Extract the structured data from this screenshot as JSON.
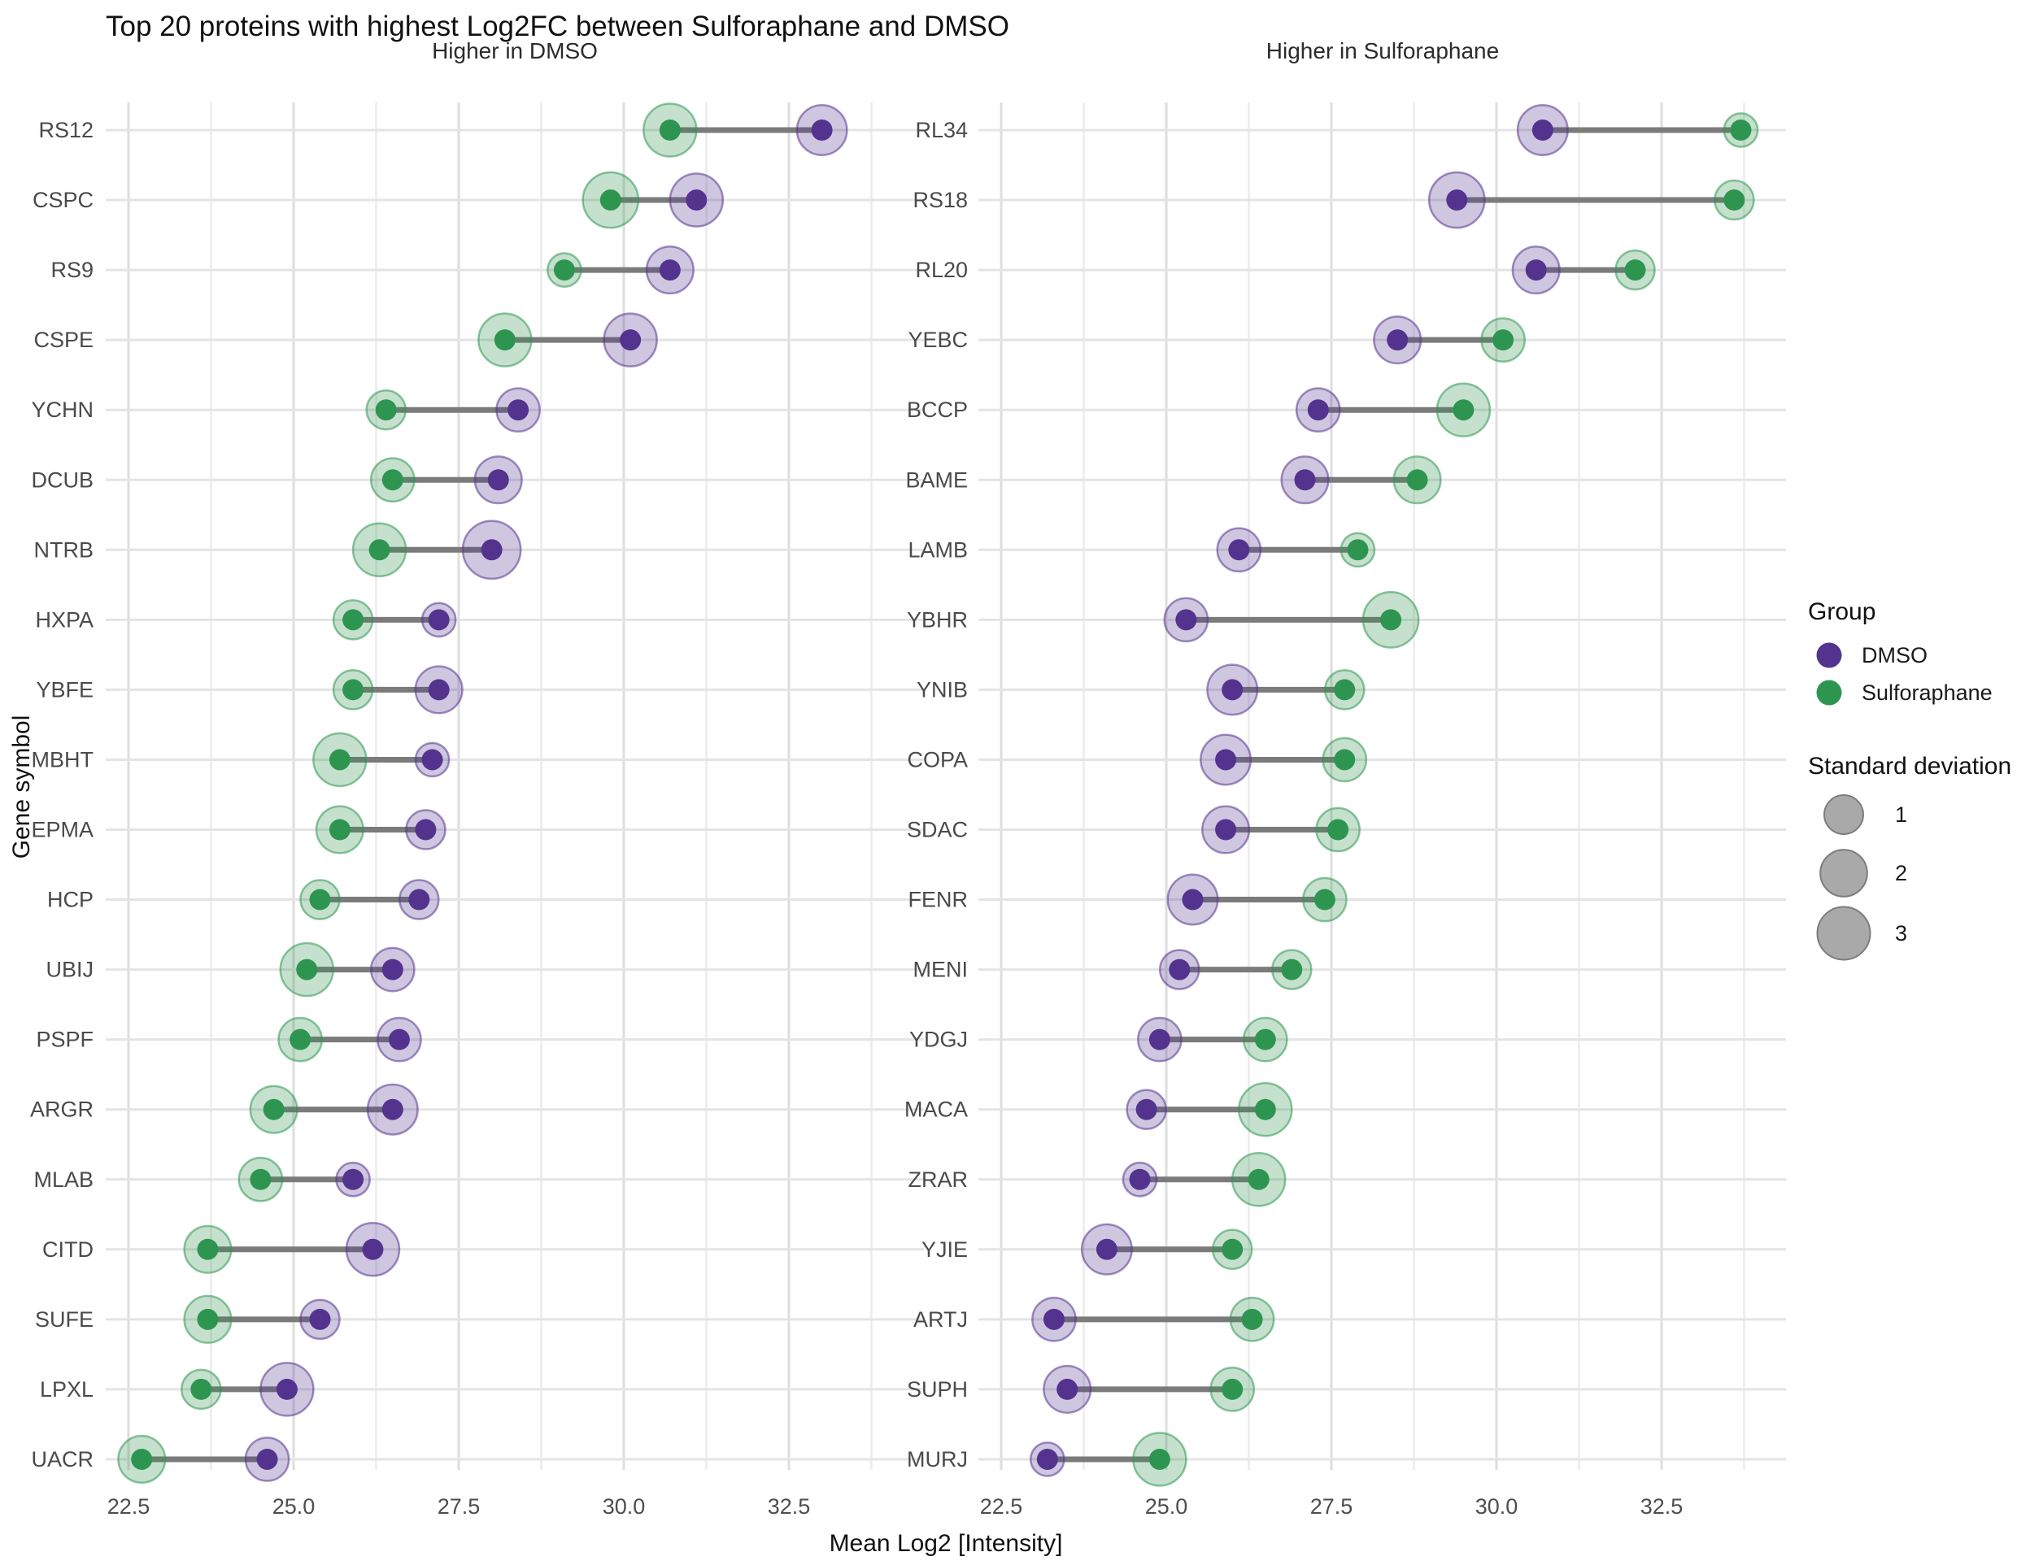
{
  "title": "Top 20 proteins with highest Log2FC between Sulforaphane and DMSO",
  "axes": {
    "x_label": "Mean Log2 [Intensity]",
    "y_label": "Gene symbol",
    "x_tick_labels": [
      "22.5",
      "25.0",
      "27.5",
      "30.0",
      "32.5"
    ],
    "x_tick_values": [
      22.5,
      25.0,
      27.5,
      30.0,
      32.5
    ],
    "x_minor_values": [
      23.75,
      26.25,
      28.75,
      31.25,
      33.75
    ],
    "x_range": [
      22.2,
      34.4
    ]
  },
  "legend": {
    "group_title": "Group",
    "groups": [
      {
        "label": "DMSO",
        "color": "#53338E"
      },
      {
        "label": "Sulforaphane",
        "color": "#2E9550"
      }
    ],
    "sd_title": "Standard deviation",
    "sd_items": [
      {
        "label": "1",
        "sd": 1
      },
      {
        "label": "2",
        "sd": 2
      },
      {
        "label": "3",
        "sd": 3
      }
    ]
  },
  "colors": {
    "dmso": "#53338E",
    "sulforaphane": "#2E9550",
    "connector": "#7b7b7b",
    "row_line": "#e4e4e4",
    "grid_major": "#dedede",
    "grid_minor": "#ececec",
    "sd_swatch_fill": "#a9a9a9",
    "sd_swatch_stroke": "#7d7d7d",
    "background": "#ffffff"
  },
  "chart_data": {
    "type": "dumbbell",
    "xlabel": "Mean Log2 [Intensity]",
    "ylabel": "Gene symbol",
    "xlim": [
      22.2,
      34.4
    ],
    "x_ticks": [
      22.5,
      25.0,
      27.5,
      30.0,
      32.5
    ],
    "grid": "on",
    "legend_position": "right",
    "series_colors": {
      "DMSO": "#53338E",
      "Sulforaphane": "#2E9550"
    },
    "size_encoding": "standard deviation (1-3)",
    "panels": [
      {
        "label": "Higher in DMSO",
        "rows": [
          {
            "gene": "RS12",
            "dmso": 33.0,
            "dmso_sd": 2.5,
            "sulforaphane": 30.7,
            "sulforaphane_sd": 3
          },
          {
            "gene": "CSPC",
            "dmso": 31.1,
            "dmso_sd": 3,
            "sulforaphane": 29.8,
            "sulforaphane_sd": 3.5
          },
          {
            "gene": "RS9",
            "dmso": 30.7,
            "dmso_sd": 2,
            "sulforaphane": 29.1,
            "sulforaphane_sd": 0.5
          },
          {
            "gene": "CSPE",
            "dmso": 30.1,
            "dmso_sd": 3,
            "sulforaphane": 28.2,
            "sulforaphane_sd": 3
          },
          {
            "gene": "YCHN",
            "dmso": 28.4,
            "dmso_sd": 1.5,
            "sulforaphane": 26.4,
            "sulforaphane_sd": 1
          },
          {
            "gene": "DCUB",
            "dmso": 28.1,
            "dmso_sd": 2,
            "sulforaphane": 26.5,
            "sulforaphane_sd": 1.5
          },
          {
            "gene": "NTRB",
            "dmso": 28.0,
            "dmso_sd": 4,
            "sulforaphane": 26.3,
            "sulforaphane_sd": 3
          },
          {
            "gene": "HXPA",
            "dmso": 27.2,
            "dmso_sd": 0.5,
            "sulforaphane": 25.9,
            "sulforaphane_sd": 1
          },
          {
            "gene": "YBFE",
            "dmso": 27.2,
            "dmso_sd": 2,
            "sulforaphane": 25.9,
            "sulforaphane_sd": 1
          },
          {
            "gene": "MBHT",
            "dmso": 27.1,
            "dmso_sd": 0.5,
            "sulforaphane": 25.7,
            "sulforaphane_sd": 3
          },
          {
            "gene": "EPMA",
            "dmso": 27.0,
            "dmso_sd": 1,
            "sulforaphane": 25.7,
            "sulforaphane_sd": 2
          },
          {
            "gene": "HCP",
            "dmso": 26.9,
            "dmso_sd": 1,
            "sulforaphane": 25.4,
            "sulforaphane_sd": 1
          },
          {
            "gene": "UBIJ",
            "dmso": 26.5,
            "dmso_sd": 1.5,
            "sulforaphane": 25.2,
            "sulforaphane_sd": 3
          },
          {
            "gene": "PSPF",
            "dmso": 26.6,
            "dmso_sd": 1.5,
            "sulforaphane": 25.1,
            "sulforaphane_sd": 1.5
          },
          {
            "gene": "ARGR",
            "dmso": 26.5,
            "dmso_sd": 2.5,
            "sulforaphane": 24.7,
            "sulforaphane_sd": 2
          },
          {
            "gene": "MLAB",
            "dmso": 25.9,
            "dmso_sd": 0.5,
            "sulforaphane": 24.5,
            "sulforaphane_sd": 1.5
          },
          {
            "gene": "CITD",
            "dmso": 26.2,
            "dmso_sd": 3,
            "sulforaphane": 23.7,
            "sulforaphane_sd": 2
          },
          {
            "gene": "SUFE",
            "dmso": 25.4,
            "dmso_sd": 1,
            "sulforaphane": 23.7,
            "sulforaphane_sd": 2
          },
          {
            "gene": "LPXL",
            "dmso": 24.9,
            "dmso_sd": 3,
            "sulforaphane": 23.6,
            "sulforaphane_sd": 1
          },
          {
            "gene": "UACR",
            "dmso": 24.6,
            "dmso_sd": 1.5,
            "sulforaphane": 22.7,
            "sulforaphane_sd": 2
          }
        ]
      },
      {
        "label": "Higher in Sulforaphane",
        "rows": [
          {
            "gene": "RL34",
            "dmso": 30.7,
            "dmso_sd": 2.5,
            "sulforaphane": 33.7,
            "sulforaphane_sd": 0.5
          },
          {
            "gene": "RS18",
            "dmso": 29.4,
            "dmso_sd": 3.5,
            "sulforaphane": 33.6,
            "sulforaphane_sd": 1
          },
          {
            "gene": "RL20",
            "dmso": 30.6,
            "dmso_sd": 2,
            "sulforaphane": 32.1,
            "sulforaphane_sd": 1
          },
          {
            "gene": "YEBC",
            "dmso": 28.5,
            "dmso_sd": 2,
            "sulforaphane": 30.1,
            "sulforaphane_sd": 1.5
          },
          {
            "gene": "BCCP",
            "dmso": 27.3,
            "dmso_sd": 1.5,
            "sulforaphane": 29.5,
            "sulforaphane_sd": 3
          },
          {
            "gene": "BAME",
            "dmso": 27.1,
            "dmso_sd": 2,
            "sulforaphane": 28.8,
            "sulforaphane_sd": 2
          },
          {
            "gene": "LAMB",
            "dmso": 26.1,
            "dmso_sd": 1.5,
            "sulforaphane": 27.9,
            "sulforaphane_sd": 0.5
          },
          {
            "gene": "YBHR",
            "dmso": 25.3,
            "dmso_sd": 1.5,
            "sulforaphane": 28.4,
            "sulforaphane_sd": 3.5
          },
          {
            "gene": "YNIB",
            "dmso": 26.0,
            "dmso_sd": 2.5,
            "sulforaphane": 27.7,
            "sulforaphane_sd": 1
          },
          {
            "gene": "COPA",
            "dmso": 25.9,
            "dmso_sd": 2.5,
            "sulforaphane": 27.7,
            "sulforaphane_sd": 1.5
          },
          {
            "gene": "SDAC",
            "dmso": 25.9,
            "dmso_sd": 2,
            "sulforaphane": 27.6,
            "sulforaphane_sd": 1.5
          },
          {
            "gene": "FENR",
            "dmso": 25.4,
            "dmso_sd": 2.5,
            "sulforaphane": 27.4,
            "sulforaphane_sd": 1.5
          },
          {
            "gene": "MENI",
            "dmso": 25.2,
            "dmso_sd": 1,
            "sulforaphane": 26.9,
            "sulforaphane_sd": 1
          },
          {
            "gene": "YDGJ",
            "dmso": 24.9,
            "dmso_sd": 1.5,
            "sulforaphane": 26.5,
            "sulforaphane_sd": 1.5
          },
          {
            "gene": "MACA",
            "dmso": 24.7,
            "dmso_sd": 1,
            "sulforaphane": 26.5,
            "sulforaphane_sd": 3
          },
          {
            "gene": "ZRAR",
            "dmso": 24.6,
            "dmso_sd": 0.5,
            "sulforaphane": 26.4,
            "sulforaphane_sd": 3
          },
          {
            "gene": "YJIE",
            "dmso": 24.1,
            "dmso_sd": 2.5,
            "sulforaphane": 26.0,
            "sulforaphane_sd": 1
          },
          {
            "gene": "ARTJ",
            "dmso": 23.3,
            "dmso_sd": 1.5,
            "sulforaphane": 26.3,
            "sulforaphane_sd": 1.5
          },
          {
            "gene": "SUPH",
            "dmso": 23.5,
            "dmso_sd": 2,
            "sulforaphane": 26.0,
            "sulforaphane_sd": 1.5
          },
          {
            "gene": "MURJ",
            "dmso": 23.2,
            "dmso_sd": 0.5,
            "sulforaphane": 24.9,
            "sulforaphane_sd": 3
          }
        ]
      }
    ]
  }
}
